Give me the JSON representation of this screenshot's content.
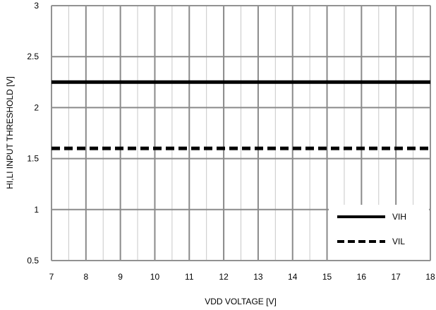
{
  "chart_data": {
    "type": "line",
    "title": "",
    "xlabel": "VDD VOLTAGE [V]",
    "ylabel": "HI,LI INPUT THRESHOLD [V]",
    "xlim": [
      7,
      18
    ],
    "ylim": [
      0.5,
      3
    ],
    "x_ticks": [
      "7",
      "8",
      "9",
      "10",
      "11",
      "12",
      "13",
      "14",
      "15",
      "16",
      "17",
      "18"
    ],
    "y_ticks": [
      "0.5",
      "1",
      "1.5",
      "2",
      "2.5",
      "3"
    ],
    "grid": true,
    "legend": "bottom-right",
    "series": [
      {
        "name": "VIH",
        "style": "solid",
        "color": "#000000",
        "x": [
          7,
          18
        ],
        "y": [
          2.25,
          2.25
        ]
      },
      {
        "name": "VIL",
        "style": "dashed",
        "color": "#000000",
        "x": [
          7,
          18
        ],
        "y": [
          1.6,
          1.6
        ]
      }
    ]
  }
}
